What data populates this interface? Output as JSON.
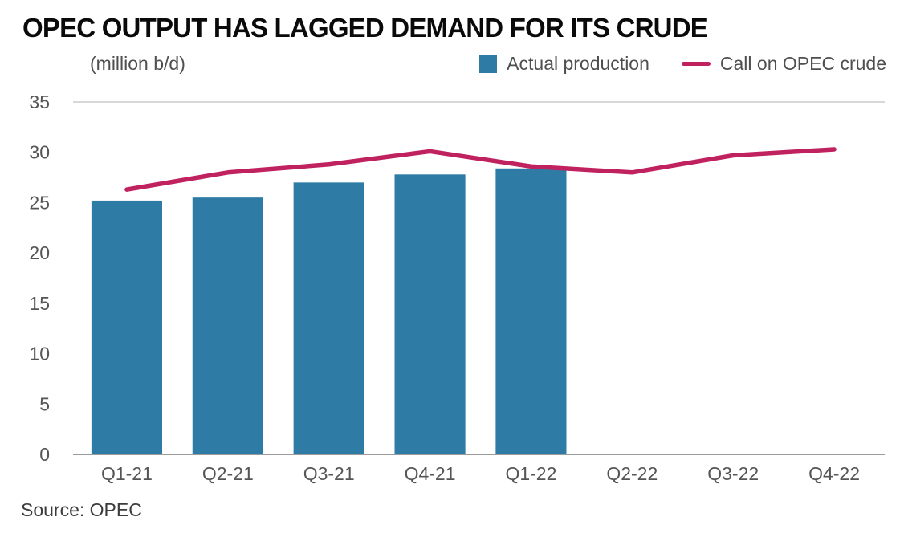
{
  "page": {
    "title": "OPEC OUTPUT HAS LAGGED DEMAND FOR ITS CRUDE",
    "unit_label": "(million b/d)",
    "source": "Source: OPEC"
  },
  "legend": [
    {
      "label": "Actual production",
      "swatch": "bar",
      "color": "#2e7ca5"
    },
    {
      "label": "Call on OPEC crude",
      "swatch": "line",
      "color": "#c0215f"
    }
  ],
  "colors": {
    "bar": "#2e7ca5",
    "line": "#c0215f",
    "gridline": "#cccccc",
    "axis": "#9b9b9b",
    "tick_text": "#555555"
  },
  "chart_data": {
    "type": "bar",
    "title": "OPEC OUTPUT HAS LAGGED DEMAND FOR ITS CRUDE",
    "xlabel": "",
    "ylabel": "(million b/d)",
    "categories": [
      "Q1-21",
      "Q2-21",
      "Q3-21",
      "Q4-21",
      "Q1-22",
      "Q2-22",
      "Q3-22",
      "Q4-22"
    ],
    "series": [
      {
        "name": "Actual production",
        "type": "bar",
        "color": "#2e7ca5",
        "values": [
          25.2,
          25.5,
          27.0,
          27.8,
          28.4,
          null,
          null,
          null
        ]
      },
      {
        "name": "Call on OPEC crude",
        "type": "line",
        "color": "#c0215f",
        "values": [
          26.3,
          28.0,
          28.8,
          30.1,
          28.6,
          28.0,
          29.7,
          30.3
        ]
      }
    ],
    "ylim": [
      0,
      35
    ],
    "yticks": [
      0,
      5,
      10,
      15,
      20,
      25,
      30,
      35
    ],
    "grid": "top-line-only",
    "legend_position": "top-right",
    "source": "Source: OPEC"
  }
}
